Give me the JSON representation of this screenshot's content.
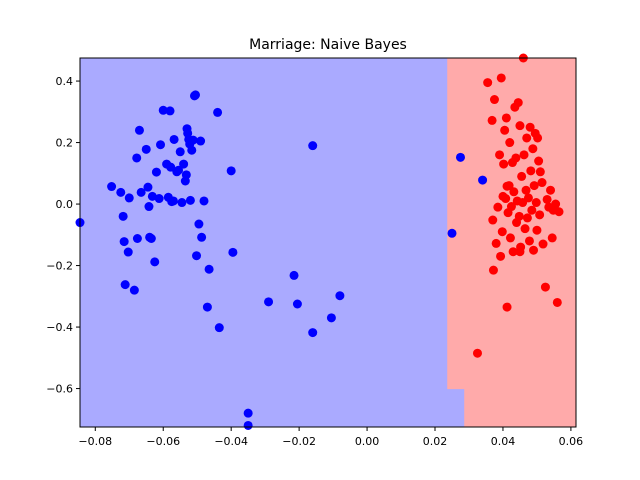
{
  "chart_data": {
    "type": "scatter",
    "title": "Marriage: Naive Bayes",
    "xlabel": "",
    "ylabel": "",
    "xlim": [
      -0.0845,
      0.0615
    ],
    "ylim": [
      -0.725,
      0.475
    ],
    "xticks": [
      -0.08,
      -0.06,
      -0.04,
      -0.02,
      0.0,
      0.02,
      0.04,
      0.06
    ],
    "xtick_labels": [
      "−0.08",
      "−0.06",
      "−0.04",
      "−0.02",
      "0.00",
      "0.02",
      "0.04",
      "0.06"
    ],
    "yticks": [
      -0.6,
      -0.4,
      -0.2,
      0.0,
      0.2,
      0.4
    ],
    "ytick_labels": [
      "−0.6",
      "−0.4",
      "−0.2",
      "0.0",
      "0.2",
      "0.4"
    ],
    "grid": false,
    "colors": {
      "class_0_region": "#aaaaff",
      "class_1_region": "#ffaaaa",
      "class_0_points": "#0000ff",
      "class_1_points": "#ff0000"
    },
    "regions": [
      {
        "class": 1,
        "polygon": [
          [
            0.0236,
            0.475
          ],
          [
            0.0615,
            0.475
          ],
          [
            0.0615,
            -0.725
          ],
          [
            0.0286,
            -0.725
          ],
          [
            0.0286,
            -0.602
          ],
          [
            0.0236,
            -0.602
          ]
        ]
      }
    ],
    "series": [
      {
        "class": 0,
        "points": [
          [
            -0.0845,
            -0.06
          ],
          [
            -0.0752,
            0.057
          ],
          [
            -0.0725,
            0.038
          ],
          [
            -0.0718,
            -0.04
          ],
          [
            -0.0715,
            -0.122
          ],
          [
            -0.0712,
            -0.262
          ],
          [
            -0.0703,
            -0.156
          ],
          [
            -0.07,
            0.02
          ],
          [
            -0.0685,
            -0.28
          ],
          [
            -0.0678,
            0.15
          ],
          [
            -0.0676,
            -0.112
          ],
          [
            -0.067,
            0.24
          ],
          [
            -0.0665,
            0.038
          ],
          [
            -0.065,
            0.178
          ],
          [
            -0.0645,
            0.055
          ],
          [
            -0.0642,
            -0.008
          ],
          [
            -0.064,
            -0.108
          ],
          [
            -0.0635,
            -0.112
          ],
          [
            -0.0632,
            0.025
          ],
          [
            -0.0625,
            -0.188
          ],
          [
            -0.062,
            0.104
          ],
          [
            -0.0612,
            0.018
          ],
          [
            -0.0608,
            0.193
          ],
          [
            -0.06,
            0.305
          ],
          [
            -0.059,
            0.13
          ],
          [
            -0.0585,
            0.022
          ],
          [
            -0.058,
            0.303
          ],
          [
            -0.0578,
            0.12
          ],
          [
            -0.0575,
            0.008
          ],
          [
            -0.057,
            0.01
          ],
          [
            -0.0568,
            0.21
          ],
          [
            -0.056,
            0.105
          ],
          [
            -0.0555,
            0.11
          ],
          [
            -0.055,
            0.17
          ],
          [
            -0.0545,
            0.005
          ],
          [
            -0.054,
            0.13
          ],
          [
            -0.0535,
            0.075
          ],
          [
            -0.0532,
            0.095
          ],
          [
            -0.053,
            0.245
          ],
          [
            -0.0528,
            0.23
          ],
          [
            -0.0525,
            0.21
          ],
          [
            -0.0522,
            0.195
          ],
          [
            -0.052,
            0.012
          ],
          [
            -0.0516,
            0.175
          ],
          [
            -0.0512,
            0.208
          ],
          [
            -0.0508,
            0.352
          ],
          [
            -0.0505,
            0.355
          ],
          [
            -0.0502,
            -0.168
          ],
          [
            -0.0495,
            -0.065
          ],
          [
            -0.049,
            0.205
          ],
          [
            -0.0487,
            -0.108
          ],
          [
            -0.048,
            0.01
          ],
          [
            -0.047,
            -0.335
          ],
          [
            -0.0465,
            -0.212
          ],
          [
            -0.044,
            0.298
          ],
          [
            -0.0435,
            -0.402
          ],
          [
            -0.04,
            0.108
          ],
          [
            -0.0395,
            -0.157
          ],
          [
            -0.035,
            -0.68
          ],
          [
            -0.035,
            -0.72
          ],
          [
            -0.029,
            -0.318
          ],
          [
            -0.0215,
            -0.232
          ],
          [
            -0.0205,
            -0.325
          ],
          [
            -0.016,
            0.19
          ],
          [
            -0.016,
            -0.418
          ],
          [
            -0.0105,
            -0.37
          ],
          [
            -0.008,
            -0.298
          ],
          [
            0.025,
            -0.095
          ],
          [
            0.0275,
            0.152
          ],
          [
            0.034,
            0.078
          ]
        ]
      },
      {
        "class": 1,
        "points": [
          [
            0.0325,
            -0.485
          ],
          [
            0.0355,
            0.395
          ],
          [
            0.0368,
            0.272
          ],
          [
            0.037,
            -0.052
          ],
          [
            0.0372,
            -0.215
          ],
          [
            0.0375,
            0.34
          ],
          [
            0.038,
            -0.128
          ],
          [
            0.0385,
            -0.01
          ],
          [
            0.039,
            0.16
          ],
          [
            0.0393,
            -0.17
          ],
          [
            0.0395,
            0.41
          ],
          [
            0.0398,
            -0.09
          ],
          [
            0.04,
            0.025
          ],
          [
            0.0402,
            0.13
          ],
          [
            0.0405,
            0.24
          ],
          [
            0.0408,
            0.018
          ],
          [
            0.041,
            0.28
          ],
          [
            0.0412,
            -0.335
          ],
          [
            0.0415,
            -0.028
          ],
          [
            0.0418,
            0.06
          ],
          [
            0.042,
            0.2
          ],
          [
            0.0422,
            -0.11
          ],
          [
            0.0425,
            -0.008
          ],
          [
            0.0428,
            0.135
          ],
          [
            0.043,
            -0.155
          ],
          [
            0.0432,
            0.04
          ],
          [
            0.0435,
            0.315
          ],
          [
            0.0438,
            0.15
          ],
          [
            0.044,
            -0.06
          ],
          [
            0.0442,
            0.01
          ],
          [
            0.0445,
            0.33
          ],
          [
            0.0448,
            -0.04
          ],
          [
            0.045,
            0.255
          ],
          [
            0.0452,
            -0.14
          ],
          [
            0.0455,
            0.09
          ],
          [
            0.0458,
            0.005
          ],
          [
            0.046,
            0.475
          ],
          [
            0.0462,
            0.16
          ],
          [
            0.0465,
            -0.08
          ],
          [
            0.0468,
            0.045
          ],
          [
            0.047,
            0.215
          ],
          [
            0.0472,
            -0.045
          ],
          [
            0.0475,
            0.02
          ],
          [
            0.0478,
            -0.12
          ],
          [
            0.048,
            0.25
          ],
          [
            0.0482,
            0.108
          ],
          [
            0.0485,
            -0.02
          ],
          [
            0.0488,
            0.18
          ],
          [
            0.049,
            -0.15
          ],
          [
            0.0492,
            0.06
          ],
          [
            0.0495,
            0.23
          ],
          [
            0.0498,
            0.005
          ],
          [
            0.05,
            -0.085
          ],
          [
            0.0502,
            0.215
          ],
          [
            0.0505,
            0.14
          ],
          [
            0.0508,
            -0.035
          ],
          [
            0.051,
            0.105
          ],
          [
            0.0515,
            0.07
          ],
          [
            0.0518,
            -0.13
          ],
          [
            0.0525,
            -0.27
          ],
          [
            0.053,
            0.015
          ],
          [
            0.0535,
            -0.01
          ],
          [
            0.054,
            0.045
          ],
          [
            0.0545,
            -0.11
          ],
          [
            0.0548,
            -0.02
          ],
          [
            0.0555,
            0.0
          ],
          [
            0.056,
            -0.32
          ],
          [
            0.0565,
            -0.025
          ],
          [
            0.045,
            -0.155
          ],
          [
            0.0412,
            0.058
          ]
        ]
      }
    ]
  }
}
